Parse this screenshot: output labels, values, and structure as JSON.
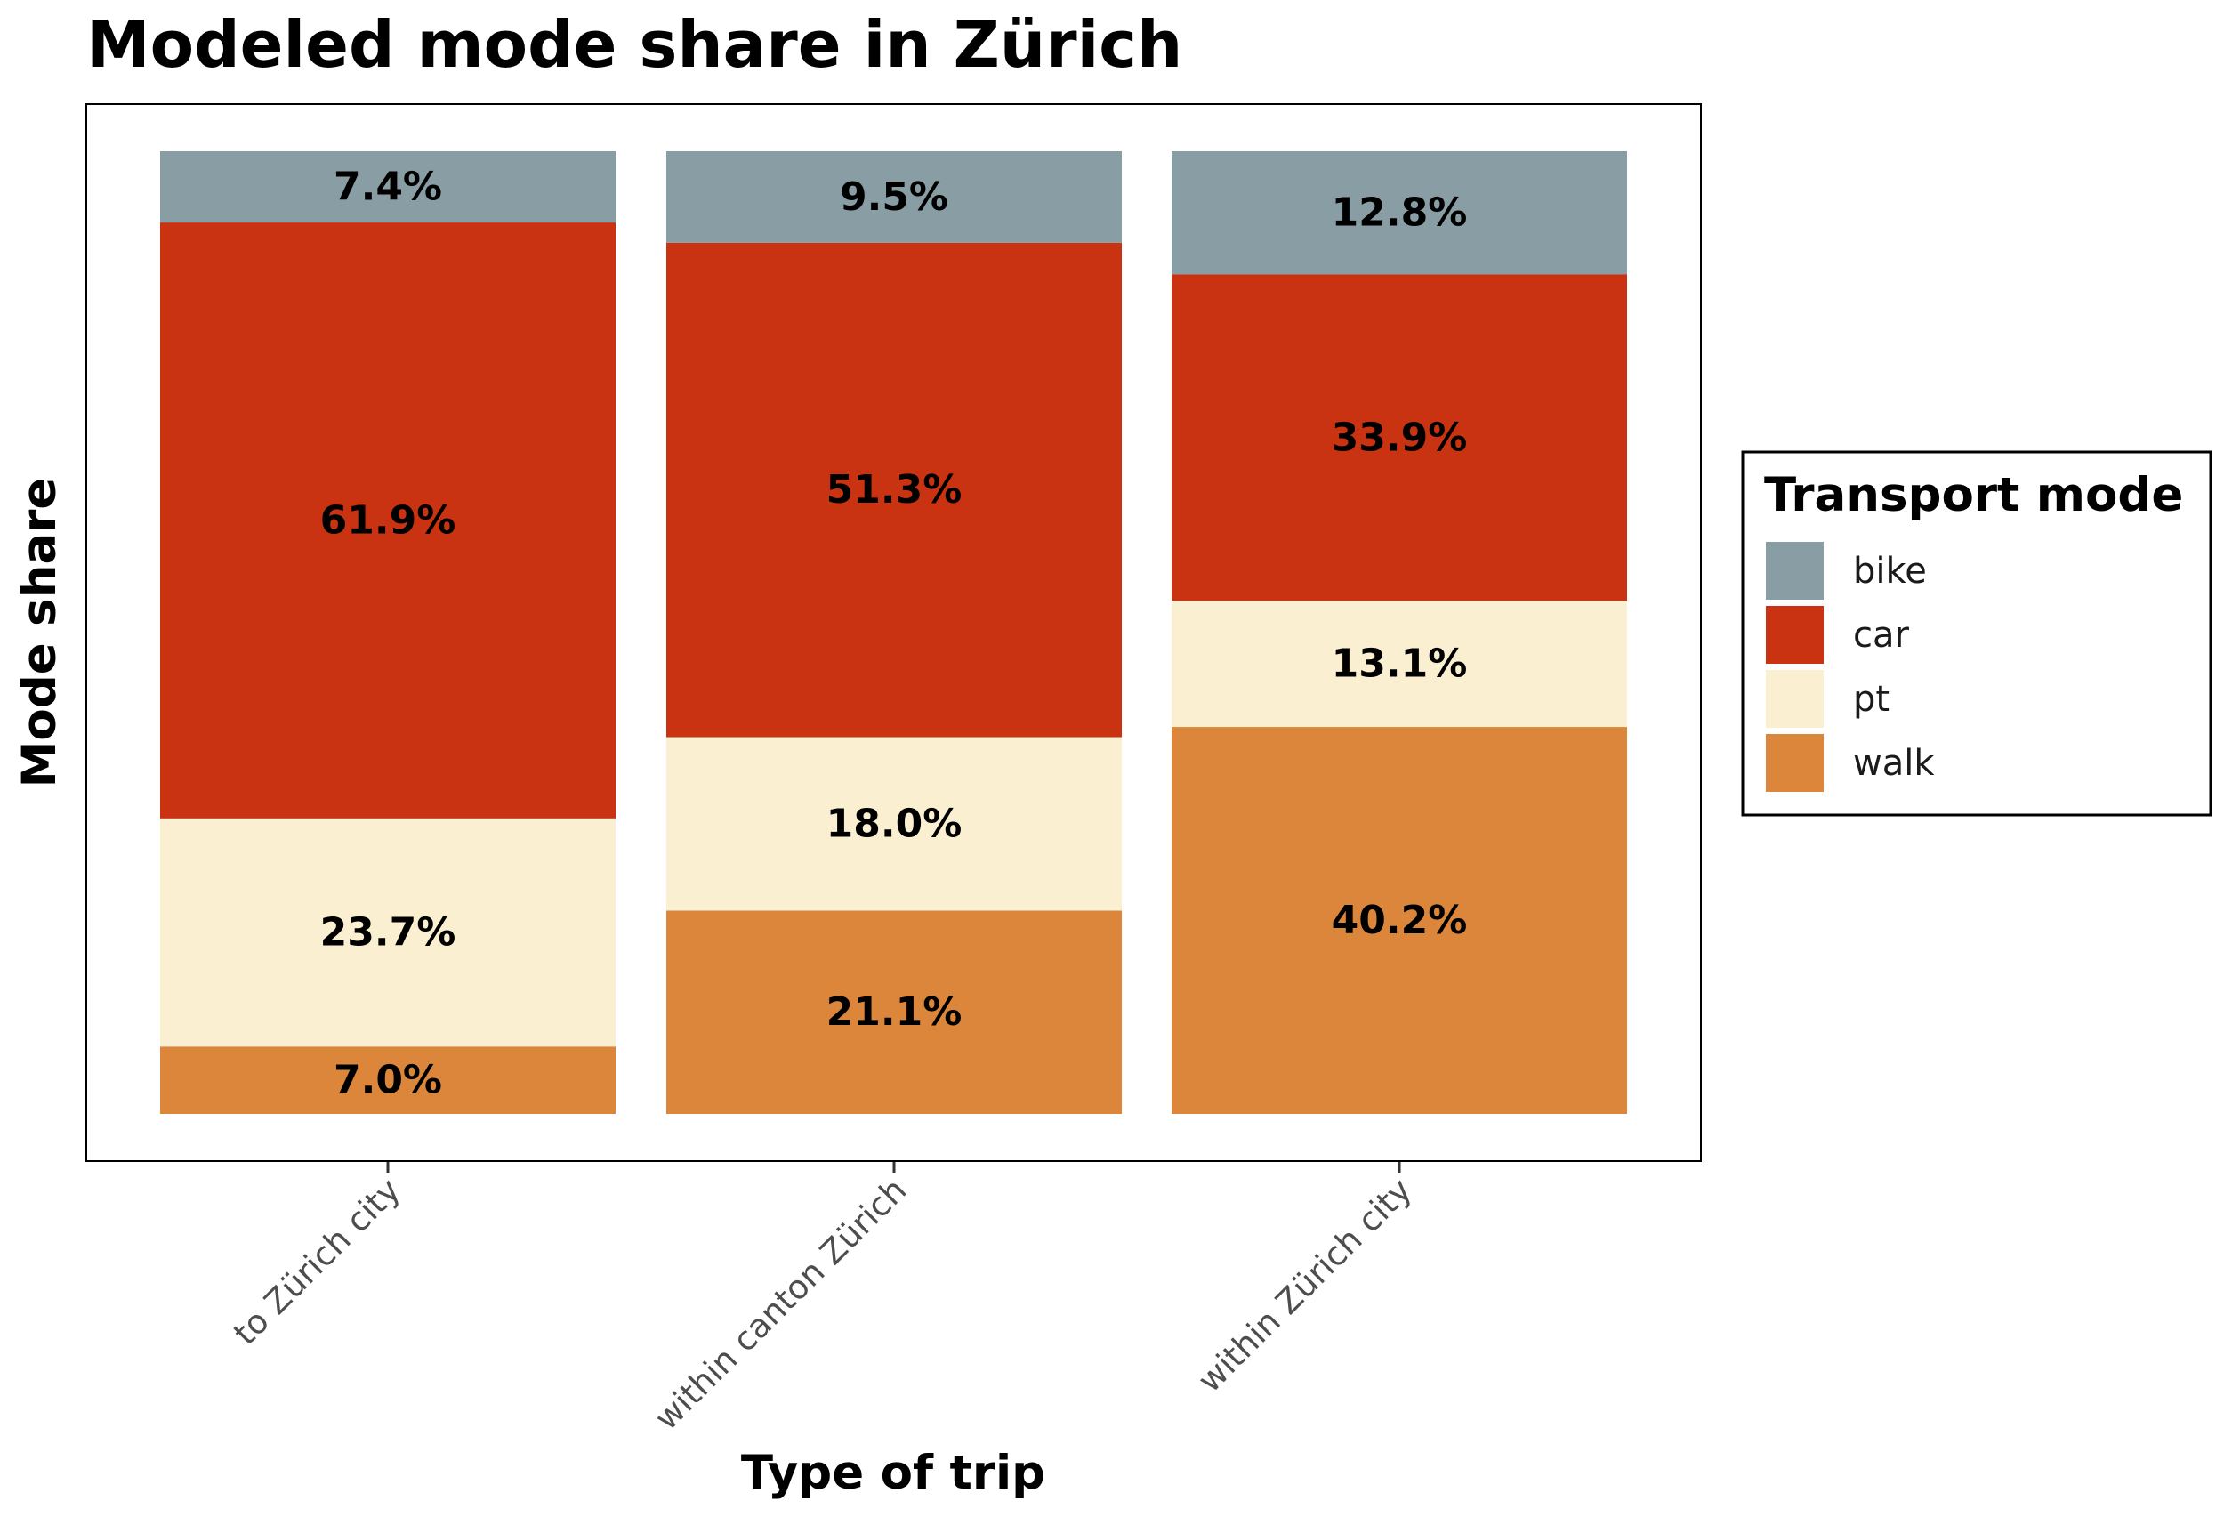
{
  "chart_data": {
    "type": "bar",
    "stacked": true,
    "normalized": true,
    "title": "Modeled mode share in Zürich",
    "xlabel": "Type of trip",
    "ylabel": "Mode share",
    "ylim": [
      0,
      1
    ],
    "y_ticks_shown": false,
    "grid": false,
    "categories": [
      "to Zürich city",
      "within canton Zürich",
      "within Zürich city"
    ],
    "series": [
      {
        "name": "walk",
        "color": "#DC863B",
        "values": [
          7.0,
          21.1,
          40.2
        ],
        "labels": [
          "7.0%",
          "21.1%",
          "40.2%"
        ]
      },
      {
        "name": "pt",
        "color": "#FAEFD1",
        "values": [
          23.7,
          18.0,
          13.1
        ],
        "labels": [
          "23.7%",
          "18.0%",
          "13.1%"
        ]
      },
      {
        "name": "car",
        "color": "#C93312",
        "values": [
          61.9,
          51.3,
          33.9
        ],
        "labels": [
          "61.9%",
          "51.3%",
          "33.9%"
        ]
      },
      {
        "name": "bike",
        "color": "#899DA4",
        "values": [
          7.4,
          9.5,
          12.8
        ],
        "labels": [
          "7.4%",
          "9.5%",
          "12.8%"
        ]
      }
    ],
    "legend": {
      "title": "Transport mode",
      "position": "right",
      "entries": [
        "bike",
        "car",
        "pt",
        "walk"
      ]
    }
  }
}
